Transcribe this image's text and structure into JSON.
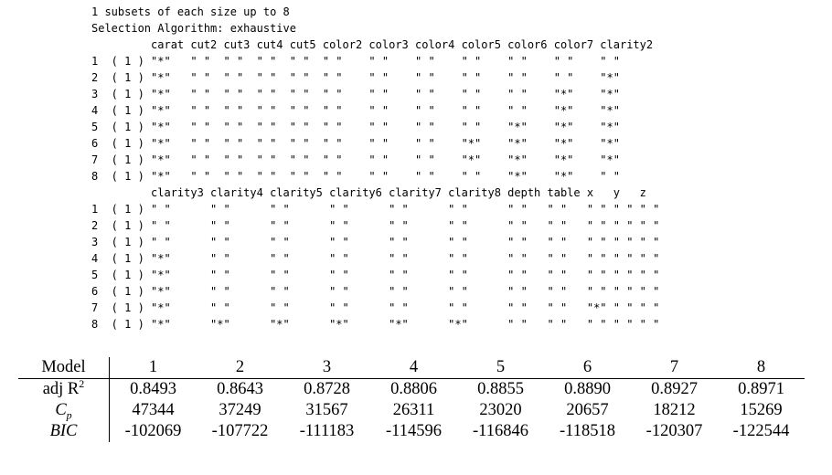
{
  "r_output": {
    "lines": [
      "1 subsets of each size up to 8",
      "Selection Algorithm: exhaustive",
      "         carat cut2 cut3 cut4 cut5 color2 color3 color4 color5 color6 color7 clarity2",
      "1  ( 1 ) \"*\"   \" \"  \" \"  \" \"  \" \"  \" \"    \" \"    \" \"    \" \"    \" \"    \" \"    \" \"     ",
      "2  ( 1 ) \"*\"   \" \"  \" \"  \" \"  \" \"  \" \"    \" \"    \" \"    \" \"    \" \"    \" \"    \"*\"     ",
      "3  ( 1 ) \"*\"   \" \"  \" \"  \" \"  \" \"  \" \"    \" \"    \" \"    \" \"    \" \"    \"*\"    \"*\"     ",
      "4  ( 1 ) \"*\"   \" \"  \" \"  \" \"  \" \"  \" \"    \" \"    \" \"    \" \"    \" \"    \"*\"    \"*\"     ",
      "5  ( 1 ) \"*\"   \" \"  \" \"  \" \"  \" \"  \" \"    \" \"    \" \"    \" \"    \"*\"    \"*\"    \"*\"     ",
      "6  ( 1 ) \"*\"   \" \"  \" \"  \" \"  \" \"  \" \"    \" \"    \" \"    \"*\"    \"*\"    \"*\"    \"*\"     ",
      "7  ( 1 ) \"*\"   \" \"  \" \"  \" \"  \" \"  \" \"    \" \"    \" \"    \"*\"    \"*\"    \"*\"    \"*\"     ",
      "8  ( 1 ) \"*\"   \" \"  \" \"  \" \"  \" \"  \" \"    \" \"    \" \"    \" \"    \"*\"    \"*\"    \" \"     ",
      "         clarity3 clarity4 clarity5 clarity6 clarity7 clarity8 depth table x   y   z  ",
      "1  ( 1 ) \" \"      \" \"      \" \"      \" \"      \" \"      \" \"      \" \"   \" \"   \" \" \" \" \" \"",
      "2  ( 1 ) \" \"      \" \"      \" \"      \" \"      \" \"      \" \"      \" \"   \" \"   \" \" \" \" \" \"",
      "3  ( 1 ) \" \"      \" \"      \" \"      \" \"      \" \"      \" \"      \" \"   \" \"   \" \" \" \" \" \"",
      "4  ( 1 ) \"*\"      \" \"      \" \"      \" \"      \" \"      \" \"      \" \"   \" \"   \" \" \" \" \" \"",
      "5  ( 1 ) \"*\"      \" \"      \" \"      \" \"      \" \"      \" \"      \" \"   \" \"   \" \" \" \" \" \"",
      "6  ( 1 ) \"*\"      \" \"      \" \"      \" \"      \" \"      \" \"      \" \"   \" \"   \" \" \" \" \" \"",
      "7  ( 1 ) \"*\"      \" \"      \" \"      \" \"      \" \"      \" \"      \" \"   \" \"   \"*\" \" \" \" \"",
      "8  ( 1 ) \"*\"      \"*\"      \"*\"      \"*\"      \"*\"      \"*\"      \" \"   \" \"   \" \" \" \" \" \""
    ]
  },
  "summary_table": {
    "header_label": "Model",
    "models": [
      "1",
      "2",
      "3",
      "4",
      "5",
      "6",
      "7",
      "8"
    ],
    "rows": [
      {
        "label_main": "adj R",
        "label_sup": "2",
        "label_sub": "",
        "italic": false,
        "values": [
          "0.8493",
          "0.8643",
          "0.8728",
          "0.8806",
          "0.8855",
          "0.8890",
          "0.8927",
          "0.8971"
        ]
      },
      {
        "label_main": "C",
        "label_sup": "",
        "label_sub": "p",
        "italic": true,
        "values": [
          "47344",
          "37249",
          "31567",
          "26311",
          "23020",
          "20657",
          "18212",
          "15269"
        ]
      },
      {
        "label_main": "BIC",
        "label_sup": "",
        "label_sub": "",
        "italic": true,
        "values": [
          "-102069",
          "-107722",
          "-111183",
          "-114596",
          "-116846",
          "-118518",
          "-120307",
          "-122544"
        ]
      }
    ]
  }
}
